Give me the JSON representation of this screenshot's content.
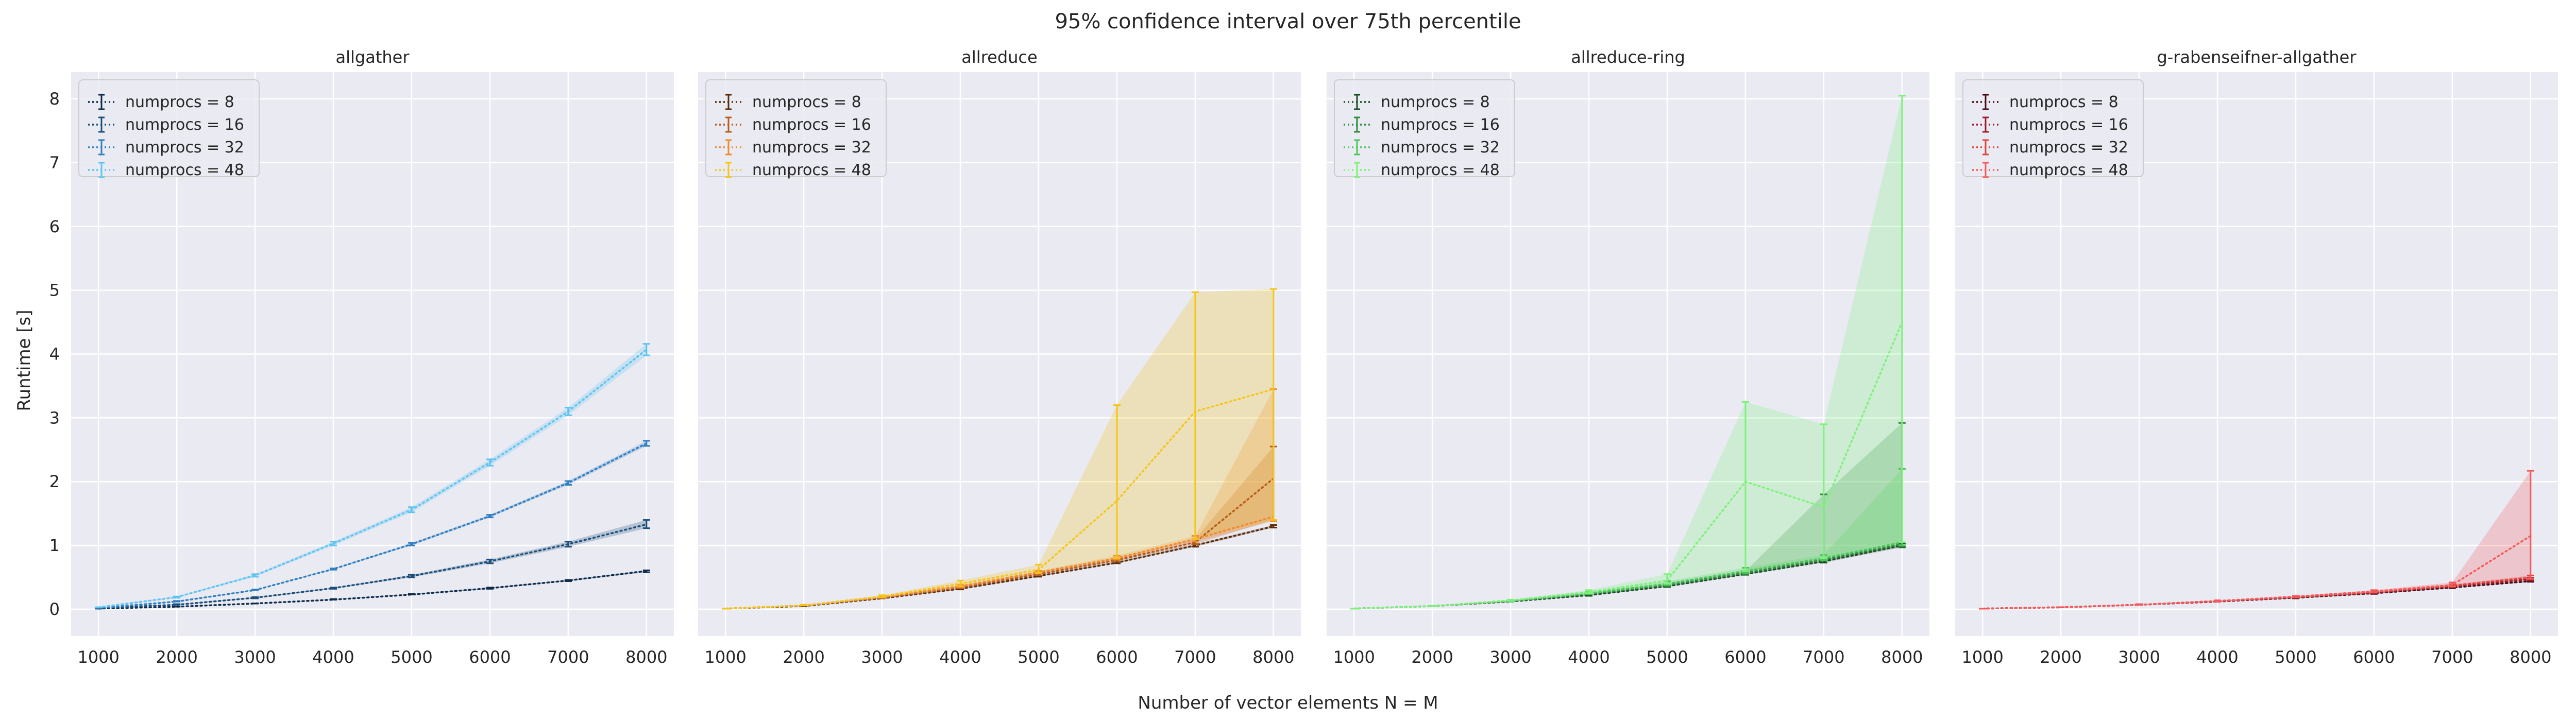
{
  "figure": {
    "suptitle": "95% confidence interval over 75th percentile",
    "xlabel": "Number of vector elements N = M",
    "ylabel": "Runtime [s]"
  },
  "chart_data": [
    {
      "type": "line",
      "title": "allgather",
      "x": [
        1000,
        2000,
        3000,
        4000,
        5000,
        6000,
        7000,
        8000
      ],
      "xlim": [
        650,
        8350
      ],
      "ylim": [
        -0.42,
        8.42
      ],
      "xticks": [
        1000,
        2000,
        3000,
        4000,
        5000,
        6000,
        7000,
        8000
      ],
      "yticks": [
        0,
        1,
        2,
        3,
        4,
        5,
        6,
        7,
        8
      ],
      "grid": true,
      "legend_position": "top-left",
      "series": [
        {
          "name": "numprocs = 8",
          "color": "#0d2b4a",
          "values": [
            0.01,
            0.04,
            0.09,
            0.15,
            0.23,
            0.33,
            0.45,
            0.6
          ],
          "ci_low": [
            0.01,
            0.04,
            0.09,
            0.15,
            0.23,
            0.32,
            0.44,
            0.58
          ],
          "ci_high": [
            0.01,
            0.04,
            0.09,
            0.16,
            0.24,
            0.34,
            0.46,
            0.61
          ]
        },
        {
          "name": "numprocs = 16",
          "color": "#1b4f7a",
          "values": [
            0.02,
            0.07,
            0.18,
            0.33,
            0.52,
            0.75,
            1.02,
            1.33
          ],
          "ci_low": [
            0.02,
            0.07,
            0.17,
            0.32,
            0.5,
            0.72,
            0.98,
            1.27
          ],
          "ci_high": [
            0.02,
            0.08,
            0.19,
            0.34,
            0.54,
            0.78,
            1.06,
            1.4
          ]
        },
        {
          "name": "numprocs = 32",
          "color": "#2f7fc1",
          "values": [
            0.02,
            0.12,
            0.3,
            0.63,
            1.02,
            1.46,
            1.98,
            2.6
          ],
          "ci_low": [
            0.02,
            0.12,
            0.3,
            0.62,
            1.0,
            1.44,
            1.95,
            2.56
          ],
          "ci_high": [
            0.02,
            0.13,
            0.31,
            0.64,
            1.04,
            1.48,
            2.01,
            2.64
          ]
        },
        {
          "name": "numprocs = 48",
          "color": "#5ec4f2",
          "values": [
            0.03,
            0.19,
            0.53,
            1.03,
            1.56,
            2.3,
            3.1,
            4.07
          ],
          "ci_low": [
            0.03,
            0.18,
            0.51,
            1.0,
            1.52,
            2.25,
            3.04,
            3.98
          ],
          "ci_high": [
            0.03,
            0.2,
            0.55,
            1.06,
            1.6,
            2.35,
            3.16,
            4.16
          ]
        }
      ]
    },
    {
      "type": "line",
      "title": "allreduce",
      "x": [
        1000,
        2000,
        3000,
        4000,
        5000,
        6000,
        7000,
        8000
      ],
      "xlim": [
        650,
        8350
      ],
      "ylim": [
        -0.42,
        8.42
      ],
      "xticks": [
        1000,
        2000,
        3000,
        4000,
        5000,
        6000,
        7000,
        8000
      ],
      "yticks": [
        0,
        1,
        2,
        3,
        4,
        5,
        6,
        7,
        8
      ],
      "grid": true,
      "legend_position": "top-left",
      "series": [
        {
          "name": "numprocs = 8",
          "color": "#5a2d0c",
          "values": [
            0.01,
            0.05,
            0.17,
            0.32,
            0.52,
            0.73,
            1.0,
            1.3
          ],
          "ci_low": [
            0.01,
            0.05,
            0.17,
            0.31,
            0.51,
            0.72,
            0.98,
            1.28
          ],
          "ci_high": [
            0.01,
            0.05,
            0.18,
            0.33,
            0.53,
            0.75,
            1.02,
            1.32
          ]
        },
        {
          "name": "numprocs = 16",
          "color": "#b85c1a",
          "values": [
            0.01,
            0.06,
            0.18,
            0.34,
            0.55,
            0.77,
            1.05,
            2.05
          ],
          "ci_low": [
            0.01,
            0.06,
            0.17,
            0.33,
            0.53,
            0.75,
            1.02,
            1.4
          ],
          "ci_high": [
            0.01,
            0.06,
            0.19,
            0.36,
            0.57,
            0.8,
            1.1,
            2.55
          ]
        },
        {
          "name": "numprocs = 32",
          "color": "#f08a2c",
          "values": [
            0.01,
            0.06,
            0.19,
            0.36,
            0.58,
            0.8,
            1.1,
            1.45
          ],
          "ci_low": [
            0.01,
            0.06,
            0.18,
            0.34,
            0.56,
            0.78,
            1.06,
            1.38
          ],
          "ci_high": [
            0.01,
            0.07,
            0.2,
            0.38,
            0.6,
            0.84,
            1.15,
            3.45
          ]
        },
        {
          "name": "numprocs = 48",
          "color": "#f5c518",
          "values": [
            0.01,
            0.06,
            0.2,
            0.4,
            0.62,
            1.7,
            3.1,
            3.45
          ],
          "ci_low": [
            0.01,
            0.06,
            0.19,
            0.36,
            0.57,
            0.8,
            1.1,
            1.4
          ],
          "ci_high": [
            0.01,
            0.07,
            0.22,
            0.45,
            0.7,
            3.2,
            4.97,
            5.02
          ]
        }
      ]
    },
    {
      "type": "line",
      "title": "allreduce-ring",
      "x": [
        1000,
        2000,
        3000,
        4000,
        5000,
        6000,
        7000,
        8000
      ],
      "xlim": [
        650,
        8350
      ],
      "ylim": [
        -0.42,
        8.42
      ],
      "xticks": [
        1000,
        2000,
        3000,
        4000,
        5000,
        6000,
        7000,
        8000
      ],
      "yticks": [
        0,
        1,
        2,
        3,
        4,
        5,
        6,
        7,
        8
      ],
      "grid": true,
      "legend_position": "top-left",
      "series": [
        {
          "name": "numprocs = 8",
          "color": "#1c4d22",
          "values": [
            0.01,
            0.05,
            0.12,
            0.22,
            0.36,
            0.55,
            0.75,
            1.0
          ],
          "ci_low": [
            0.01,
            0.05,
            0.12,
            0.21,
            0.35,
            0.54,
            0.73,
            0.97
          ],
          "ci_high": [
            0.01,
            0.05,
            0.13,
            0.23,
            0.37,
            0.56,
            0.77,
            1.03
          ]
        },
        {
          "name": "numprocs = 16",
          "color": "#2e8b3e",
          "values": [
            0.01,
            0.05,
            0.13,
            0.24,
            0.38,
            0.57,
            0.78,
            1.02
          ],
          "ci_low": [
            0.01,
            0.05,
            0.12,
            0.23,
            0.36,
            0.55,
            0.76,
            0.98
          ],
          "ci_high": [
            0.01,
            0.05,
            0.14,
            0.25,
            0.4,
            0.6,
            1.8,
            2.92
          ]
        },
        {
          "name": "numprocs = 32",
          "color": "#4cc85a",
          "values": [
            0.01,
            0.05,
            0.13,
            0.25,
            0.4,
            0.6,
            0.8,
            1.05
          ],
          "ci_low": [
            0.01,
            0.05,
            0.12,
            0.24,
            0.38,
            0.57,
            0.77,
            1.0
          ],
          "ci_high": [
            0.01,
            0.05,
            0.14,
            0.27,
            0.44,
            0.65,
            0.85,
            2.2
          ]
        },
        {
          "name": "numprocs = 48",
          "color": "#7df27a",
          "values": [
            0.01,
            0.05,
            0.14,
            0.27,
            0.45,
            2.0,
            1.6,
            4.5
          ],
          "ci_low": [
            0.01,
            0.05,
            0.13,
            0.25,
            0.4,
            0.6,
            0.8,
            1.05
          ],
          "ci_high": [
            0.01,
            0.05,
            0.15,
            0.3,
            0.55,
            3.25,
            2.9,
            8.05
          ]
        }
      ]
    },
    {
      "type": "line",
      "title": "g-rabenseifner-allgather",
      "x": [
        1000,
        2000,
        3000,
        4000,
        5000,
        6000,
        7000,
        8000
      ],
      "xlim": [
        650,
        8350
      ],
      "ylim": [
        -0.42,
        8.42
      ],
      "xticks": [
        1000,
        2000,
        3000,
        4000,
        5000,
        6000,
        7000,
        8000
      ],
      "yticks": [
        0,
        1,
        2,
        3,
        4,
        5,
        6,
        7,
        8
      ],
      "grid": true,
      "legend_position": "top-left",
      "series": [
        {
          "name": "numprocs = 8",
          "color": "#4a0c16",
          "values": [
            0.01,
            0.03,
            0.07,
            0.12,
            0.18,
            0.25,
            0.34,
            0.44
          ],
          "ci_low": [
            0.01,
            0.03,
            0.07,
            0.12,
            0.17,
            0.24,
            0.33,
            0.43
          ],
          "ci_high": [
            0.01,
            0.03,
            0.07,
            0.12,
            0.18,
            0.26,
            0.35,
            0.45
          ]
        },
        {
          "name": "numprocs = 16",
          "color": "#9e1b2c",
          "values": [
            0.01,
            0.03,
            0.07,
            0.12,
            0.19,
            0.26,
            0.36,
            0.47
          ],
          "ci_low": [
            0.01,
            0.03,
            0.07,
            0.12,
            0.18,
            0.25,
            0.35,
            0.45
          ],
          "ci_high": [
            0.01,
            0.03,
            0.07,
            0.13,
            0.19,
            0.27,
            0.37,
            0.49
          ]
        },
        {
          "name": "numprocs = 32",
          "color": "#e0433c",
          "values": [
            0.01,
            0.03,
            0.07,
            0.13,
            0.19,
            0.27,
            0.37,
            0.5
          ],
          "ci_low": [
            0.01,
            0.03,
            0.07,
            0.12,
            0.18,
            0.26,
            0.35,
            0.47
          ],
          "ci_high": [
            0.01,
            0.03,
            0.08,
            0.13,
            0.2,
            0.28,
            0.39,
            0.53
          ]
        },
        {
          "name": "numprocs = 48",
          "color": "#f55a5a",
          "values": [
            0.01,
            0.03,
            0.07,
            0.13,
            0.2,
            0.28,
            0.38,
            1.15
          ],
          "ci_low": [
            0.01,
            0.03,
            0.07,
            0.12,
            0.19,
            0.27,
            0.36,
            0.48
          ],
          "ci_high": [
            0.01,
            0.03,
            0.08,
            0.14,
            0.21,
            0.3,
            0.42,
            2.17
          ]
        }
      ]
    }
  ]
}
